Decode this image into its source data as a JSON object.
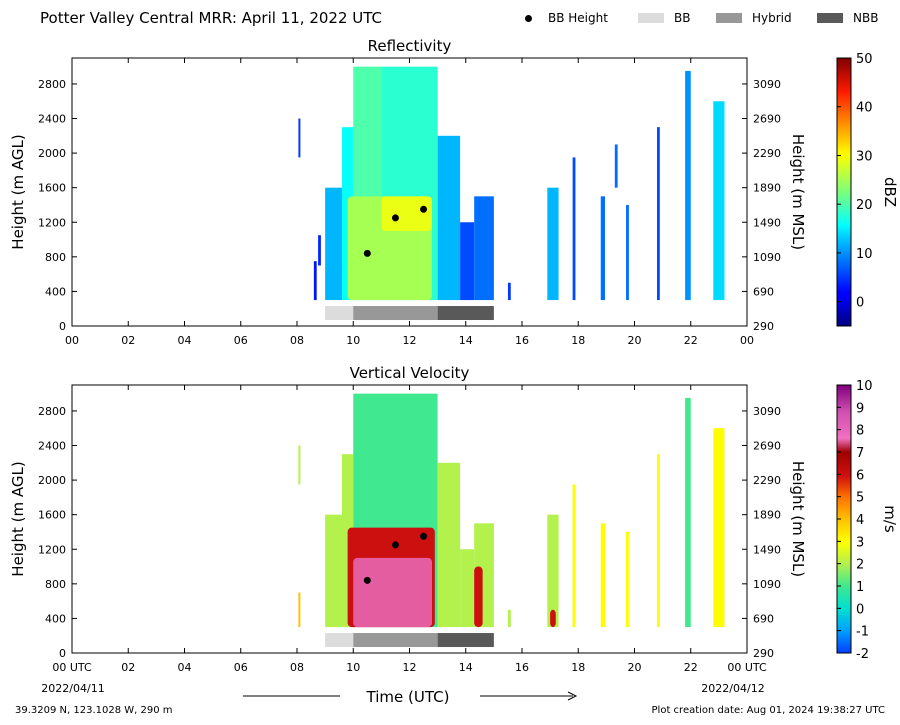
{
  "header": {
    "title": "Potter Valley Central MRR:  April 11, 2022 UTC",
    "legend": [
      {
        "label": "BB Height",
        "marker": "dot",
        "color": "#000000"
      },
      {
        "label": "BB",
        "marker": "swatch",
        "color": "#dcdcdc"
      },
      {
        "label": "Hybrid",
        "marker": "swatch",
        "color": "#989898"
      },
      {
        "label": "NBB",
        "marker": "swatch",
        "color": "#595959"
      }
    ]
  },
  "footer": {
    "date_start": "2022/04/11",
    "date_end": "2022/04/12",
    "xlabel": "Time (UTC)",
    "location": "39.3209 N, 123.1028 W, 290 m",
    "creation": "Plot creation date: Aug 01, 2024 19:38:27 UTC"
  },
  "chart_data": [
    {
      "type": "heatmap",
      "title": "Reflectivity",
      "ylabel": "Height (m AGL)",
      "ylabel_right": "Height (m MSL)",
      "xlim": [
        0,
        24
      ],
      "ylim": [
        0,
        3100
      ],
      "x_ticks": [
        "00",
        "02",
        "04",
        "06",
        "08",
        "10",
        "12",
        "14",
        "16",
        "18",
        "20",
        "22",
        "00"
      ],
      "y_ticks": [
        0,
        400,
        800,
        1200,
        1600,
        2000,
        2400,
        2800
      ],
      "y_ticks_right": [
        290,
        690,
        1090,
        1490,
        1890,
        2290,
        2690,
        3090
      ],
      "colorbar": {
        "label": "dBZ",
        "min": -5,
        "max": 50,
        "ticks": [
          "0",
          "10",
          "20",
          "30",
          "40",
          "50"
        ],
        "tick_values": [
          0,
          10,
          20,
          30,
          40,
          50
        ],
        "colormap": "jet"
      },
      "bb_height_points": [
        {
          "x": 10.5,
          "y": 840
        },
        {
          "x": 11.5,
          "y": 1250
        },
        {
          "x": 12.5,
          "y": 1350
        }
      ],
      "precip_type_bar": [
        {
          "type": "BB",
          "start": 9.0,
          "end": 10.0
        },
        {
          "type": "Hybrid",
          "start": 10.0,
          "end": 13.0
        },
        {
          "type": "NBB",
          "start": 13.0,
          "end": 15.0
        }
      ],
      "echo_regions": [
        {
          "start": 8.05,
          "end": 8.12,
          "top": 2400,
          "bottom": 1950,
          "level": 5
        },
        {
          "start": 8.75,
          "end": 8.85,
          "top": 1050,
          "bottom": 700,
          "level": 4
        },
        {
          "start": 8.6,
          "end": 8.7,
          "top": 750,
          "bottom": 300,
          "level": 3
        },
        {
          "start": 9.0,
          "end": 9.6,
          "top": 1600,
          "bottom": 300,
          "level": 12
        },
        {
          "start": 9.6,
          "end": 10.0,
          "top": 2300,
          "bottom": 300,
          "level": 16
        },
        {
          "start": 10.0,
          "end": 11.0,
          "top": 3000,
          "bottom": 300,
          "level": 20
        },
        {
          "start": 11.0,
          "end": 13.0,
          "top": 3000,
          "bottom": 300,
          "level": 18
        },
        {
          "start": 13.0,
          "end": 13.8,
          "top": 2200,
          "bottom": 300,
          "level": 12
        },
        {
          "start": 13.8,
          "end": 14.3,
          "top": 1200,
          "bottom": 300,
          "level": 6
        },
        {
          "start": 14.3,
          "end": 15.0,
          "top": 1500,
          "bottom": 300,
          "level": 8
        },
        {
          "start": 15.5,
          "end": 15.6,
          "top": 500,
          "bottom": 300,
          "level": 5
        },
        {
          "start": 16.9,
          "end": 17.3,
          "top": 1600,
          "bottom": 300,
          "level": 12
        },
        {
          "start": 17.8,
          "end": 17.9,
          "top": 1950,
          "bottom": 300,
          "level": 6
        },
        {
          "start": 18.8,
          "end": 18.95,
          "top": 1500,
          "bottom": 300,
          "level": 8
        },
        {
          "start": 19.3,
          "end": 19.4,
          "top": 2100,
          "bottom": 1600,
          "level": 8
        },
        {
          "start": 19.7,
          "end": 19.8,
          "top": 1400,
          "bottom": 300,
          "level": 8
        },
        {
          "start": 20.8,
          "end": 20.9,
          "top": 2300,
          "bottom": 300,
          "level": 6
        },
        {
          "start": 21.8,
          "end": 22.0,
          "top": 2950,
          "bottom": 300,
          "level": 10
        },
        {
          "start": 22.8,
          "end": 23.2,
          "top": 2600,
          "bottom": 300,
          "level": 14
        }
      ],
      "core_regions": [
        {
          "start": 9.8,
          "end": 12.8,
          "top": 1500,
          "bottom": 300,
          "level": 25
        },
        {
          "start": 11.0,
          "end": 12.8,
          "top": 1500,
          "bottom": 1100,
          "level": 29
        }
      ]
    },
    {
      "type": "heatmap",
      "title": "Vertical Velocity",
      "ylabel": "Height (m AGL)",
      "ylabel_right": "Height (m MSL)",
      "xlim": [
        0,
        24
      ],
      "ylim": [
        0,
        3100
      ],
      "x_ticks": [
        "00 UTC",
        "02",
        "04",
        "06",
        "08",
        "10",
        "12",
        "14",
        "16",
        "18",
        "20",
        "22",
        "00 UTC"
      ],
      "y_ticks": [
        0,
        400,
        800,
        1200,
        1600,
        2000,
        2400,
        2800
      ],
      "y_ticks_right": [
        290,
        690,
        1090,
        1490,
        1890,
        2290,
        2690,
        3090
      ],
      "colorbar": {
        "label": "m/s",
        "min": -2,
        "max": 10,
        "ticks": [
          "-2",
          "-1",
          "0",
          "1",
          "2",
          "3",
          "4",
          "5",
          "6",
          "7",
          "8",
          "9",
          "10"
        ],
        "tick_values": [
          -2,
          -1,
          0,
          1,
          2,
          3,
          4,
          5,
          6,
          7,
          8,
          9,
          10
        ],
        "colormap": "velocity"
      },
      "bb_height_points": [
        {
          "x": 10.5,
          "y": 840
        },
        {
          "x": 11.5,
          "y": 1250
        },
        {
          "x": 12.5,
          "y": 1350
        }
      ],
      "precip_type_bar": [
        {
          "type": "BB",
          "start": 9.0,
          "end": 10.0
        },
        {
          "type": "Hybrid",
          "start": 10.0,
          "end": 13.0
        },
        {
          "type": "NBB",
          "start": 13.0,
          "end": 15.0
        }
      ],
      "echo_regions": [
        {
          "start": 8.05,
          "end": 8.12,
          "top": 2400,
          "bottom": 1950,
          "level": 2
        },
        {
          "start": 8.05,
          "end": 8.12,
          "top": 700,
          "bottom": 300,
          "level": 4
        },
        {
          "start": 9.0,
          "end": 9.6,
          "top": 1600,
          "bottom": 300,
          "level": 2
        },
        {
          "start": 9.6,
          "end": 10.0,
          "top": 2300,
          "bottom": 300,
          "level": 2
        },
        {
          "start": 10.0,
          "end": 13.0,
          "top": 3000,
          "bottom": 300,
          "level": 1
        },
        {
          "start": 13.0,
          "end": 13.8,
          "top": 2200,
          "bottom": 300,
          "level": 2
        },
        {
          "start": 13.8,
          "end": 14.3,
          "top": 1200,
          "bottom": 300,
          "level": 2
        },
        {
          "start": 14.3,
          "end": 15.0,
          "top": 1500,
          "bottom": 300,
          "level": 2
        },
        {
          "start": 15.5,
          "end": 15.6,
          "top": 500,
          "bottom": 300,
          "level": 2
        },
        {
          "start": 16.9,
          "end": 17.3,
          "top": 1600,
          "bottom": 300,
          "level": 2
        },
        {
          "start": 17.8,
          "end": 17.9,
          "top": 1950,
          "bottom": 300,
          "level": 3
        },
        {
          "start": 18.8,
          "end": 18.95,
          "top": 1500,
          "bottom": 300,
          "level": 3
        },
        {
          "start": 19.7,
          "end": 19.8,
          "top": 1400,
          "bottom": 300,
          "level": 3
        },
        {
          "start": 20.8,
          "end": 20.9,
          "top": 2300,
          "bottom": 300,
          "level": 3
        },
        {
          "start": 21.8,
          "end": 22.0,
          "top": 2950,
          "bottom": 300,
          "level": 1
        },
        {
          "start": 22.8,
          "end": 23.2,
          "top": 2600,
          "bottom": 300,
          "level": 3
        }
      ],
      "core_regions": [
        {
          "start": 9.8,
          "end": 12.9,
          "top": 1450,
          "bottom": 300,
          "level": 6
        },
        {
          "start": 10.0,
          "end": 12.8,
          "top": 1100,
          "bottom": 300,
          "level": 7.5
        },
        {
          "start": 14.3,
          "end": 14.6,
          "top": 1000,
          "bottom": 300,
          "level": 6
        },
        {
          "start": 17.0,
          "end": 17.2,
          "top": 500,
          "bottom": 300,
          "level": 6
        }
      ]
    }
  ]
}
